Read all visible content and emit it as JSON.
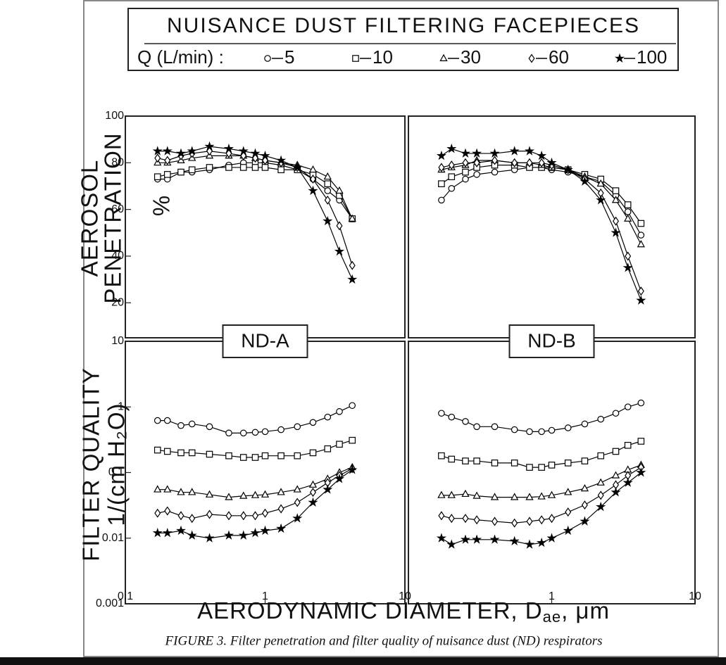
{
  "legend_title": "NUISANCE DUST FILTERING FACEPIECES",
  "legend_label": "Q (L/min) :",
  "ylabel_top": [
    "AEROSOL",
    "PENETRATION",
    "%"
  ],
  "ylabel_bottom": [
    "FILTER QUALITY",
    "1/(cm H₂O)"
  ],
  "xlabel": [
    "AERODYNAMIC DIAMETER, D",
    "ae",
    ", μm"
  ],
  "caption": "FIGURE 3.  Filter penetration and filter quality of nuisance dust (ND) respirators",
  "chart_data": [
    {
      "type": "line",
      "label": "ND-A",
      "log_x": true,
      "xlim": [
        0.1,
        10
      ],
      "ylim": [
        5,
        100
      ],
      "yticks": [
        20,
        40,
        60,
        80,
        100
      ],
      "x": [
        0.17,
        0.2,
        0.25,
        0.3,
        0.4,
        0.55,
        0.7,
        0.85,
        1.0,
        1.3,
        1.7,
        2.2,
        2.8,
        3.4,
        4.2
      ],
      "series": [
        {
          "name": "5",
          "marker": "circle",
          "color": "#000",
          "values": [
            73,
            73,
            76,
            76,
            77,
            79,
            80,
            80,
            80,
            79,
            77,
            73,
            68,
            64,
            56
          ]
        },
        {
          "name": "10",
          "marker": "square",
          "color": "#000",
          "values": [
            74,
            75,
            76,
            77,
            78,
            78,
            78,
            78,
            78,
            77,
            77,
            75,
            71,
            66,
            56
          ]
        },
        {
          "name": "30",
          "marker": "triangle",
          "color": "#000",
          "values": [
            80,
            80,
            81,
            82,
            83,
            83,
            83,
            82,
            81,
            80,
            79,
            77,
            74,
            68,
            56
          ]
        },
        {
          "name": "60",
          "marker": "diamond",
          "color": "#000",
          "values": [
            82,
            81,
            83,
            84,
            85,
            84,
            83,
            82,
            81,
            80,
            78,
            73,
            64,
            53,
            36
          ]
        },
        {
          "name": "100",
          "marker": "star",
          "color": "#000",
          "values": [
            85,
            85,
            84,
            85,
            87,
            86,
            85,
            84,
            83,
            81,
            78,
            68,
            55,
            42,
            30
          ]
        }
      ]
    },
    {
      "type": "line",
      "label": "ND-B",
      "log_x": true,
      "xlim": [
        0.1,
        10
      ],
      "ylim": [
        5,
        100
      ],
      "x": [
        0.17,
        0.2,
        0.25,
        0.3,
        0.4,
        0.55,
        0.7,
        0.85,
        1.0,
        1.3,
        1.7,
        2.2,
        2.8,
        3.4,
        4.2
      ],
      "series": [
        {
          "marker": "circle",
          "color": "#000",
          "values": [
            64,
            69,
            73,
            75,
            76,
            77,
            78,
            78,
            77,
            76,
            74,
            72,
            66,
            59,
            49
          ]
        },
        {
          "marker": "square",
          "color": "#000",
          "values": [
            71,
            74,
            76,
            78,
            79,
            79,
            78,
            78,
            78,
            77,
            75,
            73,
            68,
            62,
            54
          ]
        },
        {
          "marker": "triangle",
          "color": "#000",
          "values": [
            77,
            78,
            79,
            81,
            81,
            80,
            80,
            79,
            78,
            77,
            74,
            71,
            64,
            56,
            45
          ]
        },
        {
          "marker": "diamond",
          "color": "#000",
          "values": [
            78,
            79,
            80,
            80,
            81,
            80,
            80,
            80,
            79,
            77,
            73,
            67,
            55,
            40,
            25
          ]
        },
        {
          "marker": "star",
          "color": "#000",
          "values": [
            83,
            86,
            84,
            84,
            84,
            85,
            85,
            83,
            80,
            77,
            72,
            64,
            50,
            35,
            21
          ]
        }
      ]
    },
    {
      "type": "line",
      "log_x": true,
      "log_y": true,
      "xlim": [
        0.1,
        10
      ],
      "ylim": [
        0.001,
        10
      ],
      "xticks": [
        0.1,
        1,
        10
      ],
      "yticks": [
        0.001,
        0.01,
        0.1,
        1,
        10
      ],
      "x": [
        0.17,
        0.2,
        0.25,
        0.3,
        0.4,
        0.55,
        0.7,
        0.85,
        1.0,
        1.3,
        1.7,
        2.2,
        2.8,
        3.4,
        4.2
      ],
      "series": [
        {
          "marker": "circle",
          "color": "#000",
          "values": [
            0.62,
            0.62,
            0.52,
            0.55,
            0.5,
            0.4,
            0.4,
            0.41,
            0.42,
            0.45,
            0.5,
            0.58,
            0.7,
            0.85,
            1.05
          ]
        },
        {
          "marker": "square",
          "color": "#000",
          "values": [
            0.22,
            0.21,
            0.2,
            0.2,
            0.19,
            0.18,
            0.17,
            0.17,
            0.18,
            0.18,
            0.18,
            0.2,
            0.23,
            0.27,
            0.31
          ]
        },
        {
          "marker": "triangle",
          "color": "#000",
          "values": [
            0.055,
            0.055,
            0.05,
            0.05,
            0.046,
            0.042,
            0.044,
            0.045,
            0.046,
            0.05,
            0.055,
            0.065,
            0.08,
            0.1,
            0.12
          ]
        },
        {
          "marker": "diamond",
          "color": "#000",
          "values": [
            0.024,
            0.026,
            0.022,
            0.02,
            0.023,
            0.022,
            0.022,
            0.022,
            0.024,
            0.028,
            0.035,
            0.05,
            0.07,
            0.09,
            0.115
          ]
        },
        {
          "marker": "star",
          "color": "#000",
          "values": [
            0.012,
            0.012,
            0.013,
            0.011,
            0.01,
            0.011,
            0.011,
            0.012,
            0.013,
            0.014,
            0.02,
            0.035,
            0.055,
            0.08,
            0.11
          ]
        }
      ]
    },
    {
      "type": "line",
      "log_x": true,
      "log_y": true,
      "xlim": [
        0.1,
        10
      ],
      "ylim": [
        0.001,
        10
      ],
      "xticks": [
        1,
        10
      ],
      "x": [
        0.17,
        0.2,
        0.25,
        0.3,
        0.4,
        0.55,
        0.7,
        0.85,
        1.0,
        1.3,
        1.7,
        2.2,
        2.8,
        3.4,
        4.2
      ],
      "series": [
        {
          "marker": "circle",
          "color": "#000",
          "values": [
            0.8,
            0.7,
            0.6,
            0.5,
            0.5,
            0.45,
            0.42,
            0.42,
            0.44,
            0.48,
            0.55,
            0.65,
            0.8,
            1.0,
            1.15
          ]
        },
        {
          "marker": "square",
          "color": "#000",
          "values": [
            0.18,
            0.16,
            0.15,
            0.15,
            0.14,
            0.14,
            0.12,
            0.12,
            0.13,
            0.14,
            0.15,
            0.18,
            0.21,
            0.26,
            0.3
          ]
        },
        {
          "marker": "triangle",
          "color": "#000",
          "values": [
            0.045,
            0.045,
            0.047,
            0.044,
            0.042,
            0.042,
            0.042,
            0.043,
            0.045,
            0.05,
            0.057,
            0.07,
            0.09,
            0.11,
            0.13
          ]
        },
        {
          "marker": "diamond",
          "color": "#000",
          "values": [
            0.022,
            0.02,
            0.02,
            0.019,
            0.018,
            0.017,
            0.018,
            0.019,
            0.02,
            0.025,
            0.032,
            0.045,
            0.065,
            0.09,
            0.12
          ]
        },
        {
          "marker": "star",
          "color": "#000",
          "values": [
            0.01,
            0.008,
            0.0095,
            0.0095,
            0.0095,
            0.009,
            0.008,
            0.0085,
            0.01,
            0.013,
            0.018,
            0.03,
            0.05,
            0.07,
            0.1
          ]
        }
      ]
    }
  ]
}
